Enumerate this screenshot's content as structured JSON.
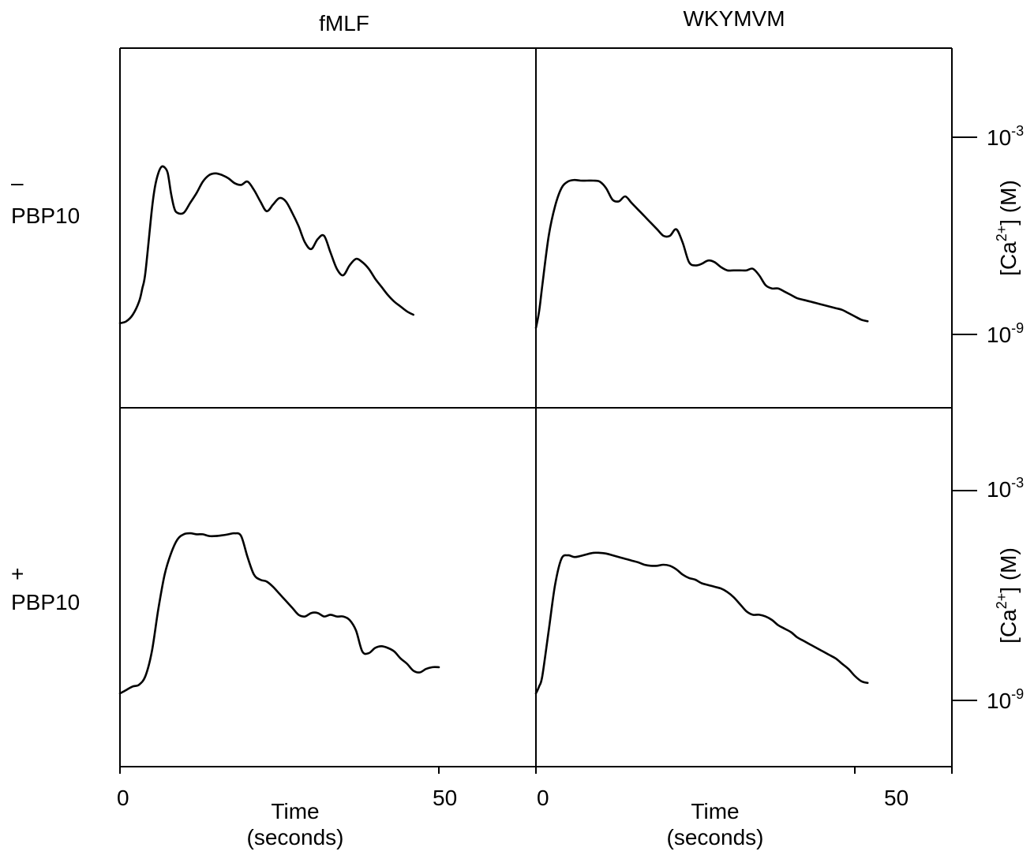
{
  "chart_data": {
    "type": "line",
    "columns": [
      "fMLF",
      "WKYMVM"
    ],
    "rows": [
      {
        "label_symbol": "–",
        "label_text": "PBP10"
      },
      {
        "label_symbol": "+",
        "label_text": "PBP10"
      }
    ],
    "x_axis": {
      "label_line1": "Time",
      "label_line2": "(seconds)",
      "ticks": [
        "0",
        "50"
      ],
      "xlim": [
        0,
        58
      ]
    },
    "y_axis": {
      "label_prefix": "[Ca",
      "label_sup": "2+",
      "label_suffix": "] (M)",
      "scale": "log",
      "tick_values": [
        0.001,
        1e-09
      ],
      "tick_base": "10",
      "tick_exps": [
        "-3",
        "-9"
      ]
    },
    "panels": [
      {
        "column": "fMLF",
        "row": "– PBP10",
        "series": [
          {
            "x": [
              0,
              1,
              2,
              3,
              3.5,
              4,
              5,
              5.5,
              6,
              6.5,
              7,
              7.5,
              8,
              8.5,
              9,
              10,
              11,
              12,
              13,
              14,
              15,
              16,
              17,
              18,
              19,
              20,
              21,
              22,
              23,
              24,
              25,
              26,
              27,
              28,
              29,
              30,
              31,
              32,
              33,
              34,
              35,
              36,
              37,
              38,
              39,
              40,
              41,
              42,
              43,
              44,
              45,
              46
            ],
            "y": [
              -8.66,
              -8.6,
              -8.4,
              -8.0,
              -7.6,
              -7.1,
              -5.2,
              -4.5,
              -4.1,
              -3.9,
              -3.92,
              -4.1,
              -4.7,
              -5.15,
              -5.3,
              -5.3,
              -5.0,
              -4.7,
              -4.35,
              -4.15,
              -4.1,
              -4.15,
              -4.25,
              -4.4,
              -4.45,
              -4.35,
              -4.6,
              -4.95,
              -5.25,
              -5.05,
              -4.85,
              -4.95,
              -5.3,
              -5.7,
              -6.2,
              -6.4,
              -6.1,
              -6.0,
              -6.5,
              -7.0,
              -7.2,
              -6.9,
              -6.7,
              -6.8,
              -7.0,
              -7.3,
              -7.55,
              -7.8,
              -8.0,
              -8.15,
              -8.3,
              -8.4
            ]
          }
        ]
      },
      {
        "column": "WKYMVM",
        "row": "– PBP10",
        "series": [
          {
            "x": [
              0,
              0.5,
              1,
              2,
              3,
              4,
              5,
              6,
              7,
              8,
              9,
              10,
              11,
              12,
              13,
              14,
              15,
              16,
              17,
              18,
              19,
              20,
              21,
              22,
              23,
              24,
              25,
              26,
              27,
              28,
              29,
              30,
              31,
              32,
              33,
              34,
              35,
              36,
              37,
              38,
              39,
              40,
              41,
              42,
              43,
              44,
              45,
              46,
              47,
              48,
              49,
              50,
              51,
              52
            ],
            "y": [
              -8.8,
              -8.3,
              -7.5,
              -6.0,
              -5.1,
              -4.55,
              -4.35,
              -4.3,
              -4.32,
              -4.32,
              -4.32,
              -4.35,
              -4.55,
              -4.9,
              -4.95,
              -4.8,
              -5.0,
              -5.2,
              -5.4,
              -5.6,
              -5.8,
              -6.0,
              -6.0,
              -5.8,
              -6.2,
              -6.8,
              -6.9,
              -6.85,
              -6.75,
              -6.8,
              -6.95,
              -7.05,
              -7.05,
              -7.05,
              -7.05,
              -7.0,
              -7.2,
              -7.5,
              -7.6,
              -7.6,
              -7.7,
              -7.8,
              -7.9,
              -7.95,
              -8.0,
              -8.05,
              -8.1,
              -8.15,
              -8.2,
              -8.25,
              -8.35,
              -8.45,
              -8.55,
              -8.6
            ]
          }
        ]
      },
      {
        "column": "fMLF",
        "row": "+ PBP10",
        "series": [
          {
            "x": [
              0,
              1,
              2,
              3,
              4,
              5,
              6,
              7,
              8,
              9,
              10,
              11,
              12,
              13,
              14,
              15,
              16,
              17,
              18,
              19,
              20,
              21,
              22,
              23,
              24,
              25,
              26,
              27,
              28,
              29,
              30,
              31,
              32,
              33,
              34,
              35,
              36,
              37,
              38,
              39,
              40,
              41,
              42,
              43,
              44,
              45,
              46,
              47,
              48,
              49,
              50
            ],
            "y": [
              -8.8,
              -8.7,
              -8.6,
              -8.55,
              -8.3,
              -7.6,
              -6.4,
              -5.4,
              -4.8,
              -4.4,
              -4.25,
              -4.22,
              -4.25,
              -4.25,
              -4.3,
              -4.3,
              -4.28,
              -4.25,
              -4.22,
              -4.3,
              -4.9,
              -5.4,
              -5.55,
              -5.6,
              -5.75,
              -5.95,
              -6.15,
              -6.35,
              -6.55,
              -6.6,
              -6.5,
              -6.5,
              -6.6,
              -6.55,
              -6.6,
              -6.6,
              -6.7,
              -7.0,
              -7.6,
              -7.65,
              -7.5,
              -7.45,
              -7.5,
              -7.6,
              -7.8,
              -7.95,
              -8.15,
              -8.2,
              -8.1,
              -8.05,
              -8.05
            ]
          }
        ]
      },
      {
        "column": "WKYMVM",
        "row": "+ PBP10",
        "series": [
          {
            "x": [
              0,
              0.5,
              1,
              2,
              3,
              4,
              5,
              6,
              7,
              8,
              9,
              10,
              11,
              12,
              13,
              14,
              15,
              16,
              17,
              18,
              19,
              20,
              21,
              22,
              23,
              24,
              25,
              26,
              27,
              28,
              29,
              30,
              31,
              32,
              33,
              34,
              35,
              36,
              37,
              38,
              39,
              40,
              41,
              42,
              43,
              44,
              45,
              46,
              47,
              48,
              49,
              50,
              51,
              52
            ],
            "y": [
              -8.8,
              -8.6,
              -8.3,
              -7.0,
              -5.7,
              -4.95,
              -4.85,
              -4.9,
              -4.87,
              -4.82,
              -4.78,
              -4.78,
              -4.8,
              -4.85,
              -4.9,
              -4.95,
              -5.0,
              -5.05,
              -5.12,
              -5.15,
              -5.15,
              -5.12,
              -5.15,
              -5.25,
              -5.4,
              -5.5,
              -5.55,
              -5.65,
              -5.7,
              -5.75,
              -5.8,
              -5.9,
              -6.05,
              -6.25,
              -6.45,
              -6.55,
              -6.55,
              -6.6,
              -6.7,
              -6.85,
              -6.95,
              -7.05,
              -7.2,
              -7.3,
              -7.4,
              -7.5,
              -7.6,
              -7.7,
              -7.8,
              -7.95,
              -8.1,
              -8.3,
              -8.45,
              -8.5
            ]
          }
        ]
      }
    ],
    "grid": false,
    "legend": "none"
  }
}
